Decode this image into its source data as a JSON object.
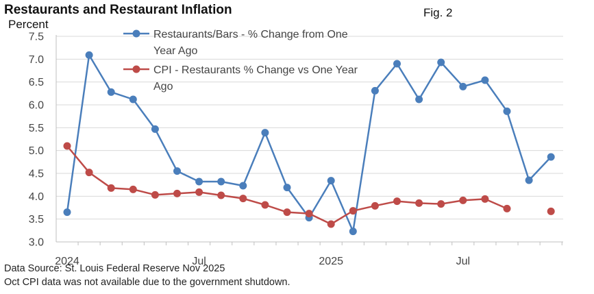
{
  "header": {
    "title": "Restaurants and Restaurant Inflation",
    "fig_label": "Fig. 2"
  },
  "footer": {
    "source": "Data Source: St. Louis Federal Reserve Nov 2025",
    "note": "Oct CPI data was not available due to the government shutdown."
  },
  "chart_data": {
    "type": "line",
    "title": "Restaurants and Restaurant Inflation",
    "ylabel": "Percent",
    "xlabel": "",
    "ylim": [
      3.0,
      7.5
    ],
    "yticks": [
      "3.0",
      "3.5",
      "4.0",
      "4.5",
      "5.0",
      "5.5",
      "6.0",
      "6.5",
      "7.0",
      "7.5"
    ],
    "x": [
      "2024-01",
      "2024-02",
      "2024-03",
      "2024-04",
      "2024-05",
      "2024-06",
      "2024-07",
      "2024-08",
      "2024-09",
      "2024-10",
      "2024-11",
      "2024-12",
      "2025-01",
      "2025-02",
      "2025-03",
      "2025-04",
      "2025-05",
      "2025-06",
      "2025-07",
      "2025-08",
      "2025-09",
      "2025-10",
      "2025-11"
    ],
    "xtick_labels": [
      {
        "x": "2024-01",
        "label": "2024"
      },
      {
        "x": "2024-07",
        "label": "Jul"
      },
      {
        "x": "2025-01",
        "label": "2025"
      },
      {
        "x": "2025-07",
        "label": "Jul"
      }
    ],
    "grid": true,
    "legend": "top-center",
    "series": [
      {
        "name": "Restaurants/Bars  - % Change from One Year Ago",
        "legend_lines": [
          "Restaurants/Bars  - % Change from One",
          "Year Ago"
        ],
        "color": "#4a7ebb",
        "values": [
          3.65,
          7.09,
          6.28,
          6.12,
          5.47,
          4.55,
          4.32,
          4.32,
          4.23,
          5.39,
          4.19,
          3.53,
          4.34,
          3.23,
          6.31,
          6.9,
          6.12,
          6.93,
          6.4,
          6.54,
          5.86,
          4.35,
          4.86
        ]
      },
      {
        "name": "CPI - Restaurants % Change  vs One Year Ago",
        "legend_lines": [
          "CPI - Restaurants % Change  vs One Year",
          "Ago"
        ],
        "color": "#be4b48",
        "values": [
          5.1,
          4.52,
          4.18,
          4.15,
          4.03,
          4.06,
          4.09,
          4.02,
          3.95,
          3.81,
          3.65,
          3.62,
          3.39,
          3.68,
          3.79,
          3.89,
          3.85,
          3.83,
          3.91,
          3.94,
          3.73,
          null,
          3.67
        ]
      }
    ]
  }
}
